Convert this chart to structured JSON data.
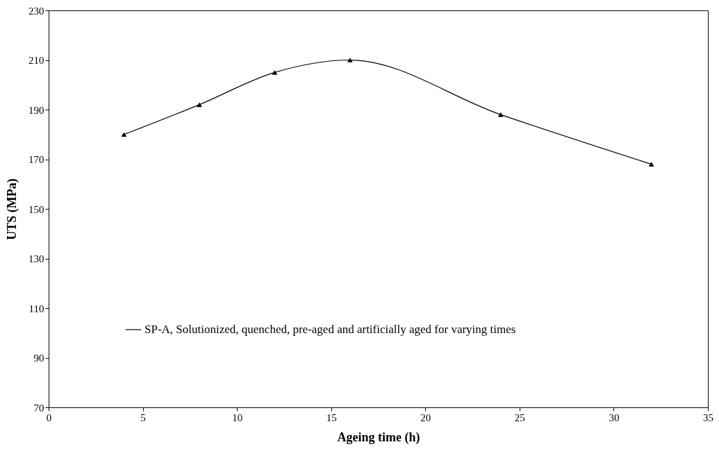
{
  "chart_data": {
    "type": "line",
    "xlabel": "Ageing time (h)",
    "ylabel": "UTS (MPa)",
    "x": [
      4,
      8,
      12,
      16,
      24,
      32
    ],
    "series": [
      {
        "name": "SP-A, Solutionized, quenched, pre-aged and artificially aged for varying times",
        "color": "#000000",
        "values": [
          180,
          192,
          205,
          210,
          188,
          168
        ]
      }
    ],
    "xlim": [
      0,
      35
    ],
    "xticks": [
      0,
      5,
      10,
      15,
      20,
      25,
      30,
      35
    ],
    "ylim": [
      70,
      230
    ],
    "yticks": [
      70,
      90,
      110,
      130,
      150,
      170,
      190,
      210,
      230
    ],
    "grid": false,
    "legend": "bottom",
    "marker": "triangle",
    "line_style": "solid"
  }
}
